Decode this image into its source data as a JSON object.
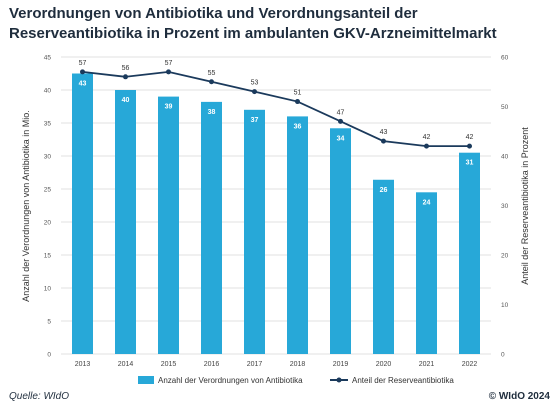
{
  "header": {
    "title": "Verordnungen von Antibiotika und Verordnungsanteil der Reserveantibiotika in Prozent im ambulanten GKV-Arzneimittelmarkt"
  },
  "footer": {
    "source": "Quelle: WIdO",
    "copyright": "© WIdO 2024"
  },
  "colors": {
    "bar": "#27a8d8",
    "line": "#1b3a5c",
    "grid": "#d9d9d9"
  },
  "chart_data": {
    "type": "bar",
    "categories": [
      "2013",
      "2014",
      "2015",
      "2016",
      "2017",
      "2018",
      "2019",
      "2020",
      "2021",
      "2022"
    ],
    "series": [
      {
        "name": "Anzahl der Verordnungen von Antibiotika",
        "type": "bar",
        "axis": "left",
        "values": [
          42.5,
          40.0,
          39.0,
          38.2,
          37.0,
          36.0,
          34.2,
          26.4,
          24.5,
          30.5
        ],
        "labels": [
          "43",
          "40",
          "39",
          "38",
          "37",
          "36",
          "34",
          "26",
          "24",
          "31"
        ]
      },
      {
        "name": "Anteil der Reserveantibiotika",
        "type": "line",
        "axis": "right",
        "values": [
          57,
          56,
          57,
          55,
          53,
          51,
          47,
          43,
          42,
          42
        ],
        "labels": [
          "57",
          "56",
          "57",
          "55",
          "53",
          "51",
          "47",
          "43",
          "42",
          "42"
        ]
      }
    ],
    "ylabel": "Anzahl der Verordnungen von Antibiotika in Mio.",
    "y2label": "Anteil der Reserveantibiotika in Prozent",
    "ylim": [
      0,
      45
    ],
    "yticks": [
      "0",
      "5",
      "10",
      "15",
      "20",
      "25",
      "30",
      "35",
      "40",
      "45"
    ],
    "y2lim": [
      0,
      60
    ],
    "y2ticks": [
      "0",
      "10",
      "20",
      "30",
      "40",
      "50",
      "60"
    ],
    "grid": true,
    "legend": "bottom"
  }
}
